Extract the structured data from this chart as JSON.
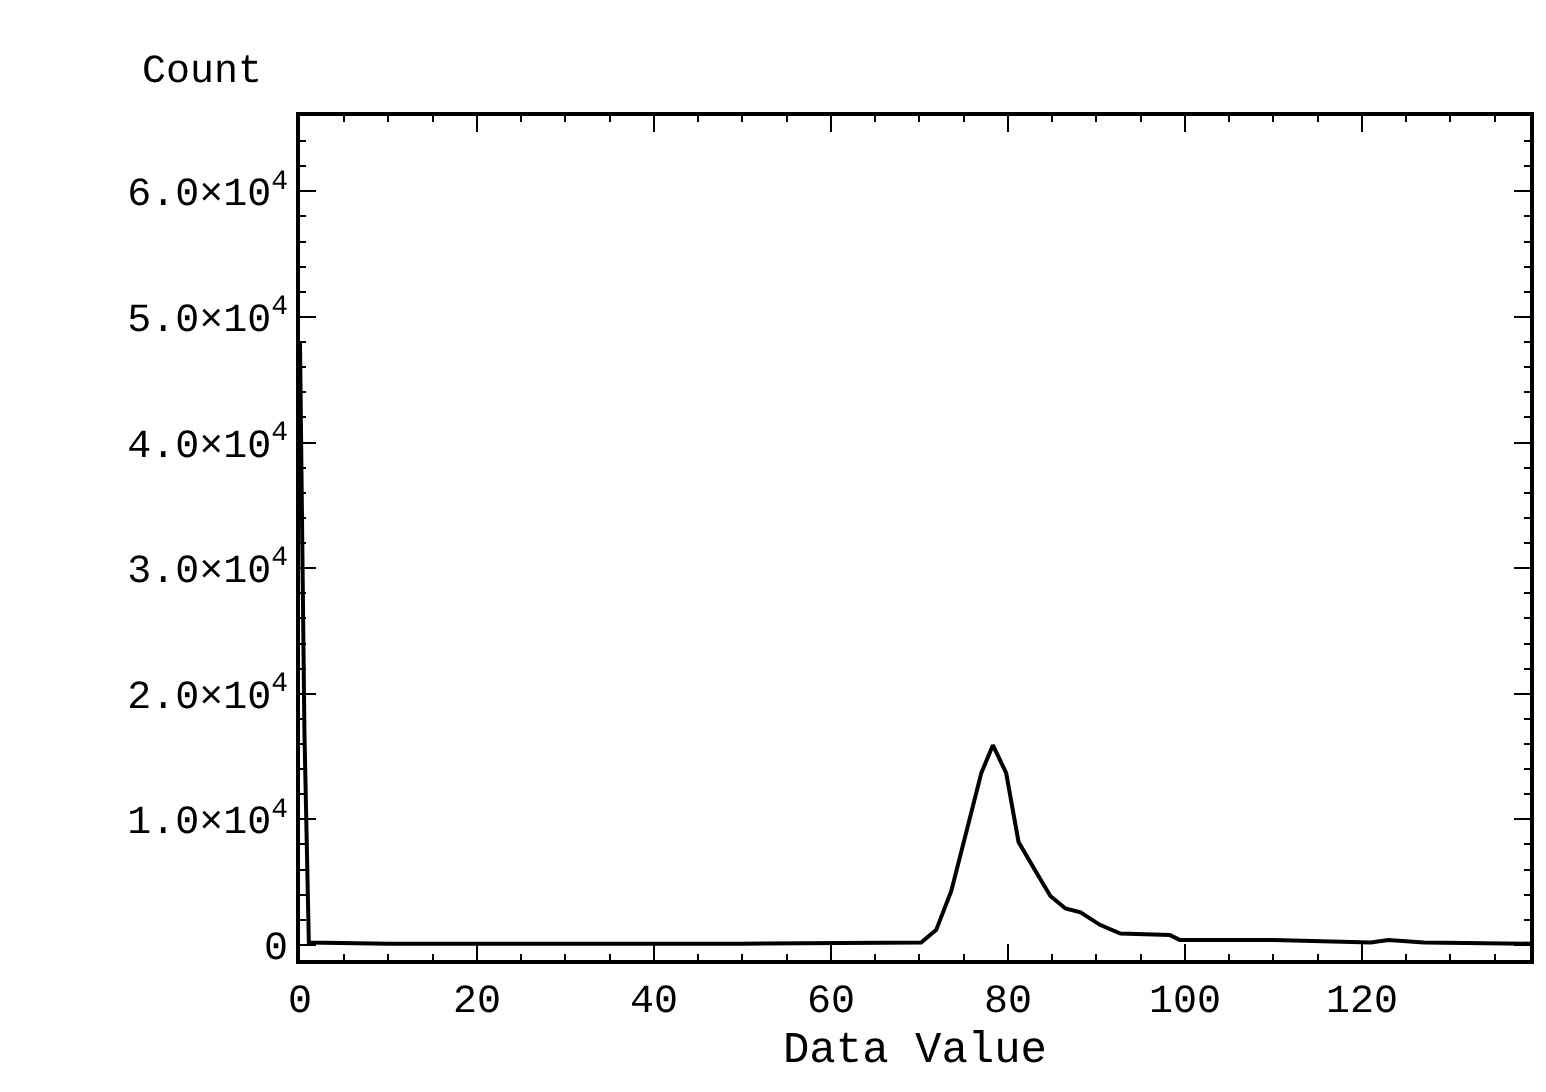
{
  "chart_data": {
    "type": "line",
    "xlabel": "Data Value",
    "ylabel": "Count",
    "x": [
      0,
      0.5,
      1,
      10,
      30,
      50,
      70.2,
      71.9,
      73.6,
      75.3,
      77,
      78.3,
      79.8,
      81.2,
      83.1,
      84.8,
      86.5,
      88.2,
      90.4,
      92.7,
      98.3,
      99.4,
      110,
      121,
      123,
      127,
      139
    ],
    "series": [
      {
        "color": "#000000",
        "values": [
          48000,
          17000,
          200,
          100,
          100,
          100,
          200,
          1200,
          4300,
          9000,
          13700,
          15900,
          13700,
          8200,
          5900,
          3900,
          2900,
          2600,
          1600,
          900,
          800,
          400,
          400,
          200,
          400,
          200,
          100
        ]
      }
    ],
    "xlim": [
      0,
      139
    ],
    "xticks": [
      0,
      20,
      40,
      60,
      80,
      100,
      120
    ],
    "ylim": [
      -1200,
      66000
    ],
    "yticks": [
      0,
      {
        "value": 10000,
        "label": "1.0×10$^{4}$"
      },
      {
        "value": 20000,
        "label": "2.0×10$^{4}$"
      },
      {
        "value": 30000,
        "label": "3.0×10$^{4}$"
      },
      {
        "value": 40000,
        "label": "4.0×10$^{4}$"
      },
      {
        "value": 50000,
        "label": "5.0×10$^{4}$"
      },
      {
        "value": 60000,
        "label": "6.0×10$^{4}$"
      }
    ],
    "marker": "none",
    "line_style": "solid"
  }
}
